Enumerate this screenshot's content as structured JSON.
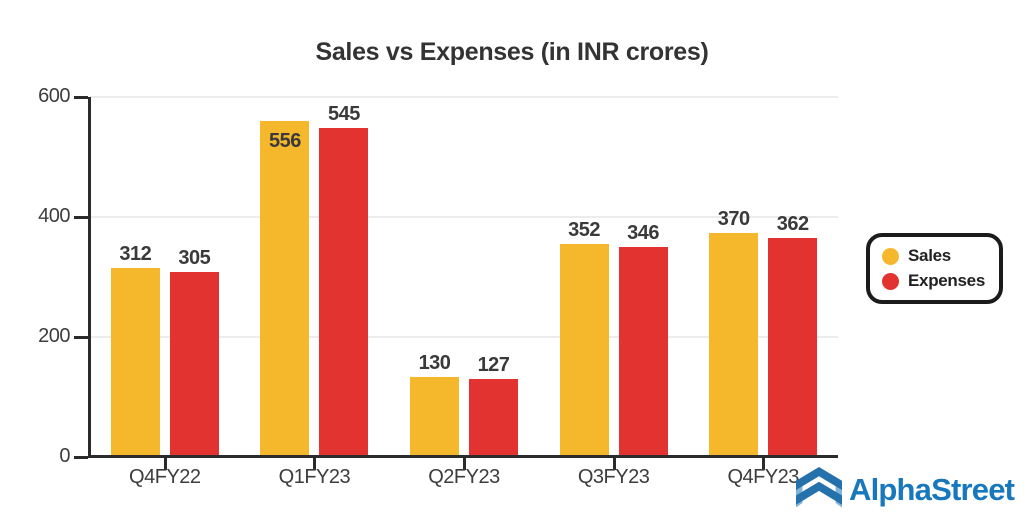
{
  "title": "Sales vs Expenses (in INR crores)",
  "chart_data": {
    "type": "bar",
    "categories": [
      "Q4FY22",
      "Q1FY23",
      "Q2FY23",
      "Q3FY23",
      "Q4FY23"
    ],
    "series": [
      {
        "name": "Sales",
        "color": "#F5B82D",
        "values": [
          312,
          556,
          130,
          352,
          370
        ]
      },
      {
        "name": "Expenses",
        "color": "#E23331",
        "values": [
          305,
          545,
          127,
          346,
          362
        ]
      }
    ],
    "title": "Sales vs Expenses (in INR crores)",
    "xlabel": "",
    "ylabel": "",
    "ylim": [
      0,
      600
    ],
    "yticks": [
      0,
      200,
      400,
      600
    ],
    "grid": true,
    "legend_position": "right",
    "value_labels": true
  },
  "branding": {
    "logo_text": "AlphaStreet",
    "logo_color": "#1878BE",
    "icon": "alphastreet-chevron-icon",
    "icon_dark": "#2571AC",
    "icon_light": "#7FB3D8"
  },
  "colors": {
    "axis": "#2b2b2b",
    "grid": "#ececec",
    "label_text": "#3a3a3a",
    "background": "#ffffff"
  }
}
